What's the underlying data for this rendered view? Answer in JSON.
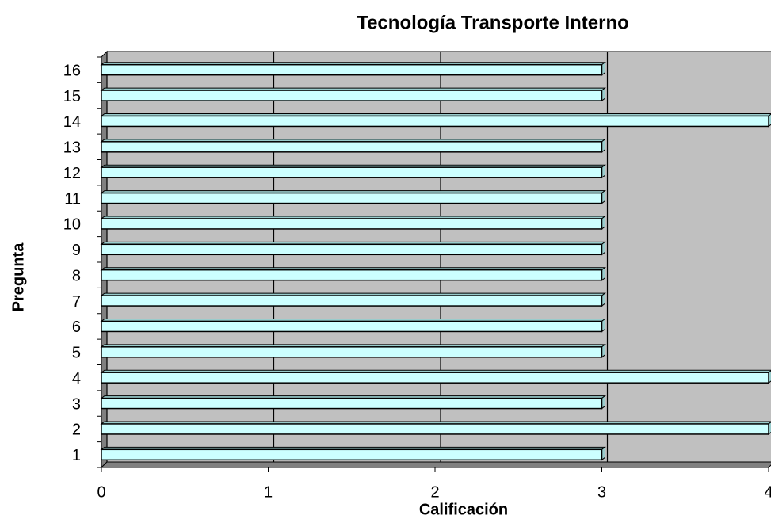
{
  "chart_data": {
    "type": "bar",
    "orientation": "horizontal",
    "title": "Tecnología Transporte Interno",
    "x_label": "Calificación",
    "y_label": "Pregunta",
    "categories": [
      "1",
      "2",
      "3",
      "4",
      "5",
      "6",
      "7",
      "8",
      "9",
      "10",
      "11",
      "12",
      "13",
      "14",
      "15",
      "16"
    ],
    "values": [
      3,
      4,
      3,
      4,
      3,
      3,
      3,
      3,
      3,
      3,
      3,
      3,
      3,
      4,
      3,
      3
    ],
    "color": "#ccffff",
    "xlim": [
      0,
      4
    ],
    "xticks": [
      0,
      1,
      2,
      3,
      4
    ],
    "grid": true
  }
}
